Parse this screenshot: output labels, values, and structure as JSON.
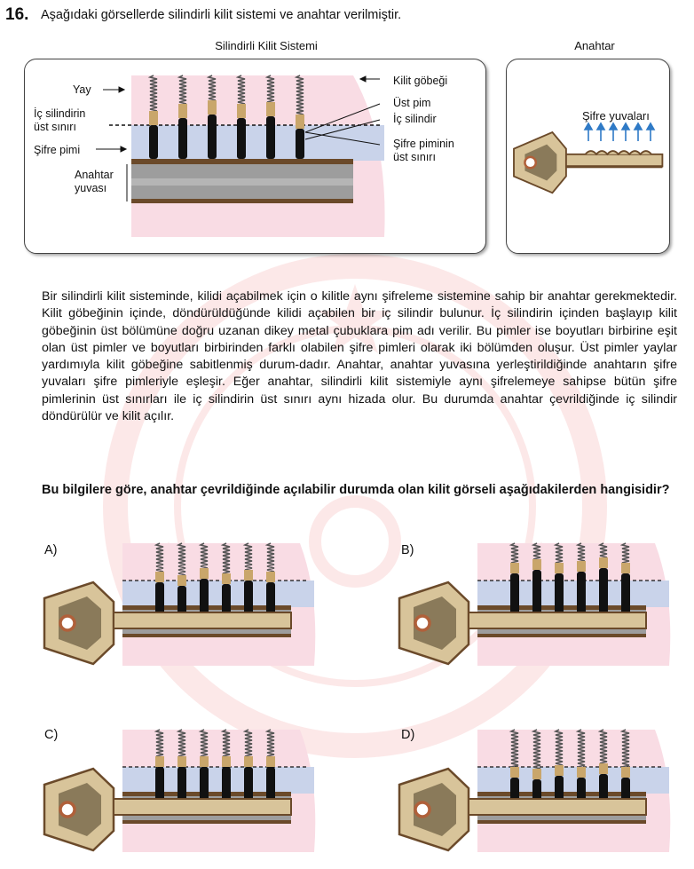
{
  "question": {
    "number": "16.",
    "text": "Aşağıdaki görsellerde silindirli kilit sistemi ve anahtar verilmiştir."
  },
  "figure": {
    "lock_caption": "Silindirli Kilit Sistemi",
    "key_caption": "Anahtar",
    "labels": {
      "yay": "Yay",
      "ic_silindir_siniri_1": "İç silindirin",
      "ic_silindir_siniri_2": "üst sınırı",
      "sifre_pimi": "Şifre pimi",
      "anahtar_yuvasi_1": "Anahtar",
      "anahtar_yuvasi_2": "yuvası",
      "kilit_gobegi": "Kilit göbeği",
      "ust_pim": "Üst pim",
      "ic_silindir": "İç silindir",
      "sifre_sinir_1": "Şifre piminin",
      "sifre_sinir_2": "üst sınırı",
      "sifre_yuvalari": "Şifre yuvaları"
    }
  },
  "paragraph": "Bir silindirli kilit sisteminde, kilidi açabilmek için o kilitle aynı şifreleme sistemine sahip bir anahtar gerekmektedir. Kilit göbeğinin içinde, döndürüldüğünde kilidi açabilen bir iç silindir bulunur. İç silindirin içinden başlayıp kilit göbeğinin üst bölümüne doğru uzanan dikey metal çubuklara pim adı verilir. Bu pimler ise boyutları birbirine eşit olan üst pimler ve boyutları birbirinden farklı olabilen şifre pimleri olarak iki bölümden oluşur. Üst pimler yaylar yardımıyla kilit göbeğine sabitlenmiş durum-dadır. Anahtar, anahtar yuvasına yerleştirildiğinde anahtarın şifre yuvaları şifre pimleriyle eşleşir. Eğer anahtar, silindirli kilit sistemiyle aynı şifrelemeye sahipse bütün şifre pimlerinin üst sınırları ile iç silindirin üst sınırı aynı hizada olur. Bu durumda anahtar çevrildiğinde iç silindir döndürülür ve kilit açılır.",
  "prompt": "Bu bilgilere göre, anahtar çevrildiğinde açılabilir durumda olan kilit görseli aşağıdakilerden hangisidir?",
  "options": [
    {
      "letter": "A)"
    },
    {
      "letter": "B)"
    },
    {
      "letter": "C)"
    },
    {
      "letter": "D)"
    }
  ],
  "colors": {
    "pink": "#f9dce4",
    "blue": "#c9d3ea",
    "gray": "#9d9d9d",
    "brown": "#6b4a2a",
    "key_gold": "#d8c49a",
    "pin_black": "#111111",
    "pin_tan": "#c9a66b",
    "arrow_blue": "#2f7ac6",
    "watermark": "#e84a4a"
  }
}
